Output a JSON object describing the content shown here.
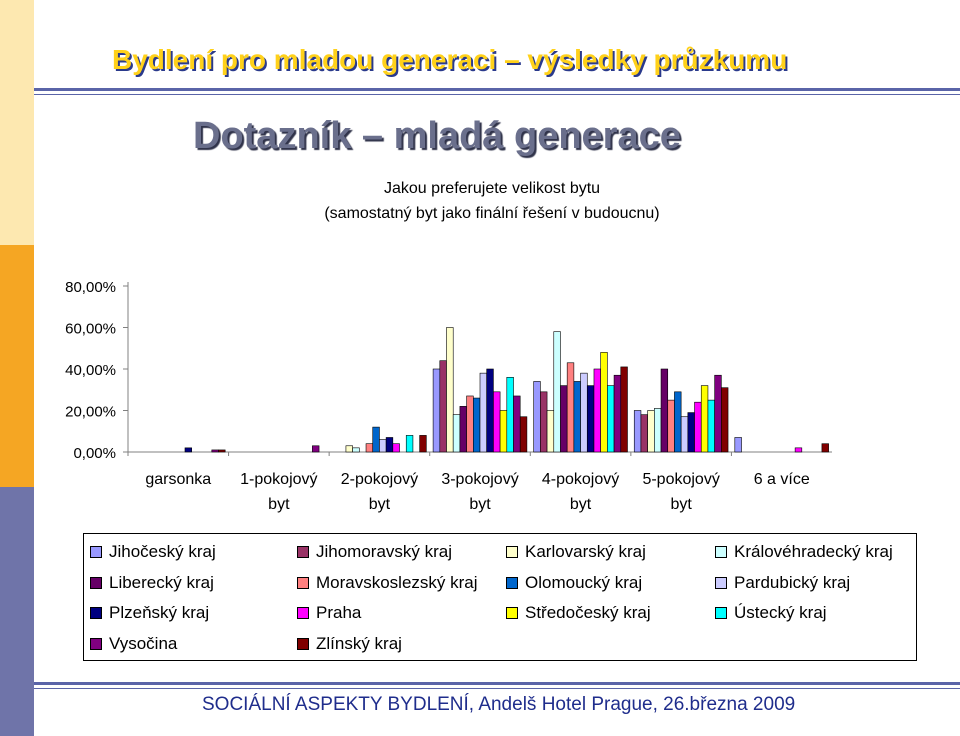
{
  "header": {
    "title": "Bydlení pro mladou generaci – výsledky průzkumu"
  },
  "slide": {
    "title": "Dotazník – mladá generace"
  },
  "footer": {
    "text": "SOCIÁLNÍ ASPEKTY BYDLENÍ, Andelš Hotel Prague, 26.března 2009"
  },
  "colors": {
    "side_blue": "#6f74a9",
    "side_orange": "#f5a623",
    "side_light": "#fde8b0",
    "header_line": "#5a64a8"
  },
  "chart_data": {
    "type": "bar",
    "title_lines": [
      "Jakou preferujete velikost bytu",
      "(samostatný byt jako finální řešení v budoucnu)"
    ],
    "categories": [
      [
        "garsonka"
      ],
      [
        "1-pokojový",
        "byt"
      ],
      [
        "2-pokojový",
        "byt"
      ],
      [
        "3-pokojový",
        "byt"
      ],
      [
        "4-pokojový",
        "byt"
      ],
      [
        "5-pokojový",
        "byt"
      ],
      [
        "6 a více"
      ]
    ],
    "yticks": [
      "80,00%",
      "60,00%",
      "40,00%",
      "20,00%",
      "0,00%"
    ],
    "ylim": [
      0,
      80
    ],
    "grid": false,
    "legend_position": "bottom",
    "series": [
      {
        "name": "Jihočeský kraj",
        "color": "#9999ff",
        "values": [
          0,
          0,
          0,
          40,
          34,
          20,
          7
        ]
      },
      {
        "name": "Jihomoravský kraj",
        "color": "#993366",
        "values": [
          0,
          0,
          0,
          44,
          29,
          18,
          0
        ]
      },
      {
        "name": "Karlovarský kraj",
        "color": "#ffffcc",
        "values": [
          0,
          0,
          3,
          60,
          20,
          20,
          0
        ]
      },
      {
        "name": "Královéhradecký kraj",
        "color": "#ccffff",
        "values": [
          0,
          0,
          2,
          18,
          58,
          21,
          0
        ]
      },
      {
        "name": "Liberecký kraj",
        "color": "#660066",
        "values": [
          0,
          0,
          0,
          22,
          32,
          40,
          0
        ]
      },
      {
        "name": "Moravskoslezský kraj",
        "color": "#ff8080",
        "values": [
          0,
          0,
          4,
          27,
          43,
          25,
          0
        ]
      },
      {
        "name": "Olomoucký kraj",
        "color": "#0066cc",
        "values": [
          0,
          0,
          12,
          26,
          34,
          29,
          0
        ]
      },
      {
        "name": "Pardubický kraj",
        "color": "#ccccff",
        "values": [
          0,
          0,
          6,
          38,
          38,
          17,
          0
        ]
      },
      {
        "name": "Plzeňský kraj",
        "color": "#000080",
        "values": [
          2,
          0,
          7,
          40,
          32,
          19,
          0
        ]
      },
      {
        "name": "Praha",
        "color": "#ff00ff",
        "values": [
          0,
          0,
          4,
          29,
          40,
          24,
          2
        ]
      },
      {
        "name": "Středočeský kraj",
        "color": "#ffff00",
        "values": [
          0,
          0,
          0,
          20,
          48,
          32,
          0
        ]
      },
      {
        "name": "Ústecký kraj",
        "color": "#00ffff",
        "values": [
          0,
          0,
          8,
          36,
          32,
          25,
          0
        ]
      },
      {
        "name": "Vysočina",
        "color": "#800080",
        "values": [
          1,
          3,
          0,
          27,
          37,
          37,
          0
        ]
      },
      {
        "name": "Zlínský kraj",
        "color": "#800000",
        "values": [
          1,
          0,
          8,
          17,
          41,
          31,
          4
        ]
      }
    ]
  }
}
